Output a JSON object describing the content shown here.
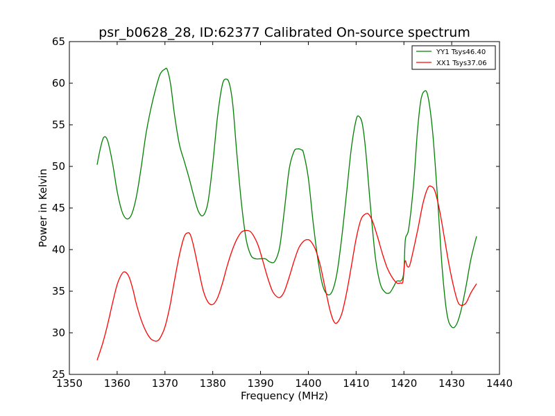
{
  "chart_data": {
    "type": "line",
    "title": "psr_b0628_28, ID:62377 Calibrated On-source spectrum",
    "xlabel": "Frequency (MHz)",
    "ylabel": "Power in Kelvin",
    "xlim": [
      1350,
      1440
    ],
    "ylim": [
      25,
      65
    ],
    "xticks": [
      "1350",
      "1360",
      "1370",
      "1380",
      "1390",
      "1400",
      "1410",
      "1420",
      "1430",
      "1440"
    ],
    "yticks": [
      "25",
      "30",
      "35",
      "40",
      "45",
      "50",
      "55",
      "60",
      "65"
    ],
    "grid": false,
    "legend_position": "top-right",
    "series": [
      {
        "name": "YY1 Tsys46.40",
        "color": "#008000",
        "x": [
          1355.8,
          1356.5,
          1357.2,
          1358.0,
          1359.0,
          1360.0,
          1361.0,
          1362.0,
          1363.0,
          1364.0,
          1365.0,
          1366.0,
          1367.0,
          1368.0,
          1369.0,
          1370.0,
          1370.5,
          1371.2,
          1372.0,
          1373.0,
          1374.0,
          1375.0,
          1376.0,
          1377.0,
          1378.0,
          1379.0,
          1380.0,
          1381.0,
          1382.0,
          1382.8,
          1383.5,
          1384.2,
          1385.0,
          1386.0,
          1387.0,
          1388.0,
          1389.0,
          1390.0,
          1391.0,
          1392.0,
          1393.0,
          1394.0,
          1395.0,
          1396.0,
          1397.0,
          1397.8,
          1398.5,
          1399.0,
          1400.0,
          1401.0,
          1402.0,
          1403.0,
          1404.0,
          1405.0,
          1406.0,
          1407.0,
          1408.0,
          1409.0,
          1410.0,
          1410.6,
          1411.3,
          1412.0,
          1413.0,
          1414.0,
          1415.0,
          1416.0,
          1417.0,
          1417.8,
          1418.5,
          1419.5,
          1420.0,
          1420.3,
          1421.0,
          1422.0,
          1422.8,
          1423.5,
          1424.2,
          1425.0,
          1426.0,
          1427.0,
          1428.0,
          1429.0,
          1430.0,
          1431.0,
          1432.0,
          1433.0,
          1434.0,
          1435.2
        ],
        "y": [
          50.2,
          52.2,
          53.5,
          53.1,
          50.5,
          47.0,
          44.6,
          43.7,
          44.2,
          46.3,
          49.8,
          53.8,
          56.8,
          59.2,
          61.1,
          61.7,
          61.6,
          59.8,
          56.2,
          52.7,
          50.7,
          48.7,
          46.5,
          44.6,
          44.1,
          45.7,
          50.3,
          56.0,
          59.8,
          60.5,
          59.9,
          57.4,
          51.8,
          45.6,
          41.2,
          39.3,
          38.9,
          38.9,
          38.9,
          38.5,
          38.6,
          40.3,
          44.8,
          49.7,
          51.8,
          52.1,
          52.0,
          51.6,
          48.6,
          43.3,
          38.8,
          35.7,
          34.6,
          35.0,
          37.2,
          41.5,
          46.8,
          52.2,
          55.6,
          56.0,
          55.1,
          51.9,
          45.2,
          39.2,
          36.0,
          34.9,
          34.8,
          35.5,
          36.2,
          36.3,
          37.5,
          41.2,
          42.5,
          47.7,
          54.0,
          57.8,
          59.0,
          58.5,
          54.2,
          46.5,
          37.8,
          32.3,
          30.7,
          31.0,
          32.8,
          35.6,
          38.8,
          41.6
        ]
      },
      {
        "name": "XX1 Tsys37.06",
        "color": "#ff0000",
        "x": [
          1355.8,
          1357.0,
          1358.0,
          1359.0,
          1360.0,
          1361.0,
          1361.7,
          1362.5,
          1363.3,
          1364.0,
          1365.0,
          1366.0,
          1367.0,
          1368.0,
          1368.6,
          1369.2,
          1370.0,
          1371.0,
          1372.0,
          1373.0,
          1374.0,
          1374.7,
          1375.3,
          1376.0,
          1377.0,
          1378.0,
          1379.0,
          1380.0,
          1381.0,
          1382.0,
          1383.0,
          1384.0,
          1385.0,
          1386.0,
          1387.0,
          1387.8,
          1388.5,
          1389.5,
          1390.5,
          1391.5,
          1392.5,
          1393.5,
          1394.2,
          1395.0,
          1396.0,
          1397.0,
          1398.0,
          1399.0,
          1399.8,
          1400.5,
          1401.5,
          1402.5,
          1403.5,
          1404.5,
          1405.3,
          1406.0,
          1407.0,
          1408.0,
          1409.0,
          1410.0,
          1411.0,
          1412.0,
          1412.7,
          1413.5,
          1414.5,
          1415.5,
          1416.5,
          1417.5,
          1418.5,
          1419.3,
          1419.8,
          1420.2,
          1420.7,
          1421.2,
          1422.0,
          1423.0,
          1424.0,
          1425.0,
          1425.7,
          1426.5,
          1427.5,
          1428.5,
          1429.5,
          1430.5,
          1431.3,
          1432.0,
          1433.0,
          1434.0,
          1435.2
        ],
        "y": [
          26.7,
          28.8,
          31.0,
          33.5,
          35.8,
          37.1,
          37.3,
          36.7,
          35.2,
          33.5,
          31.6,
          30.2,
          29.3,
          29.0,
          29.1,
          29.6,
          30.7,
          33.1,
          36.3,
          39.3,
          41.5,
          42.0,
          41.8,
          40.4,
          37.7,
          35.1,
          33.7,
          33.4,
          34.2,
          35.9,
          38.0,
          39.8,
          41.2,
          42.1,
          42.3,
          42.2,
          41.7,
          40.5,
          38.6,
          36.6,
          35.0,
          34.3,
          34.3,
          35.0,
          36.7,
          38.6,
          40.2,
          41.0,
          41.2,
          41.0,
          40.0,
          38.1,
          35.4,
          32.8,
          31.4,
          31.2,
          32.3,
          34.8,
          38.0,
          41.3,
          43.6,
          44.3,
          44.2,
          43.3,
          41.5,
          39.5,
          37.8,
          36.7,
          36.0,
          36.0,
          36.2,
          38.6,
          38.0,
          38.1,
          40.0,
          42.7,
          45.6,
          47.4,
          47.6,
          47.0,
          44.6,
          41.3,
          38.0,
          35.3,
          33.7,
          33.3,
          33.6,
          34.8,
          35.9
        ]
      }
    ]
  }
}
